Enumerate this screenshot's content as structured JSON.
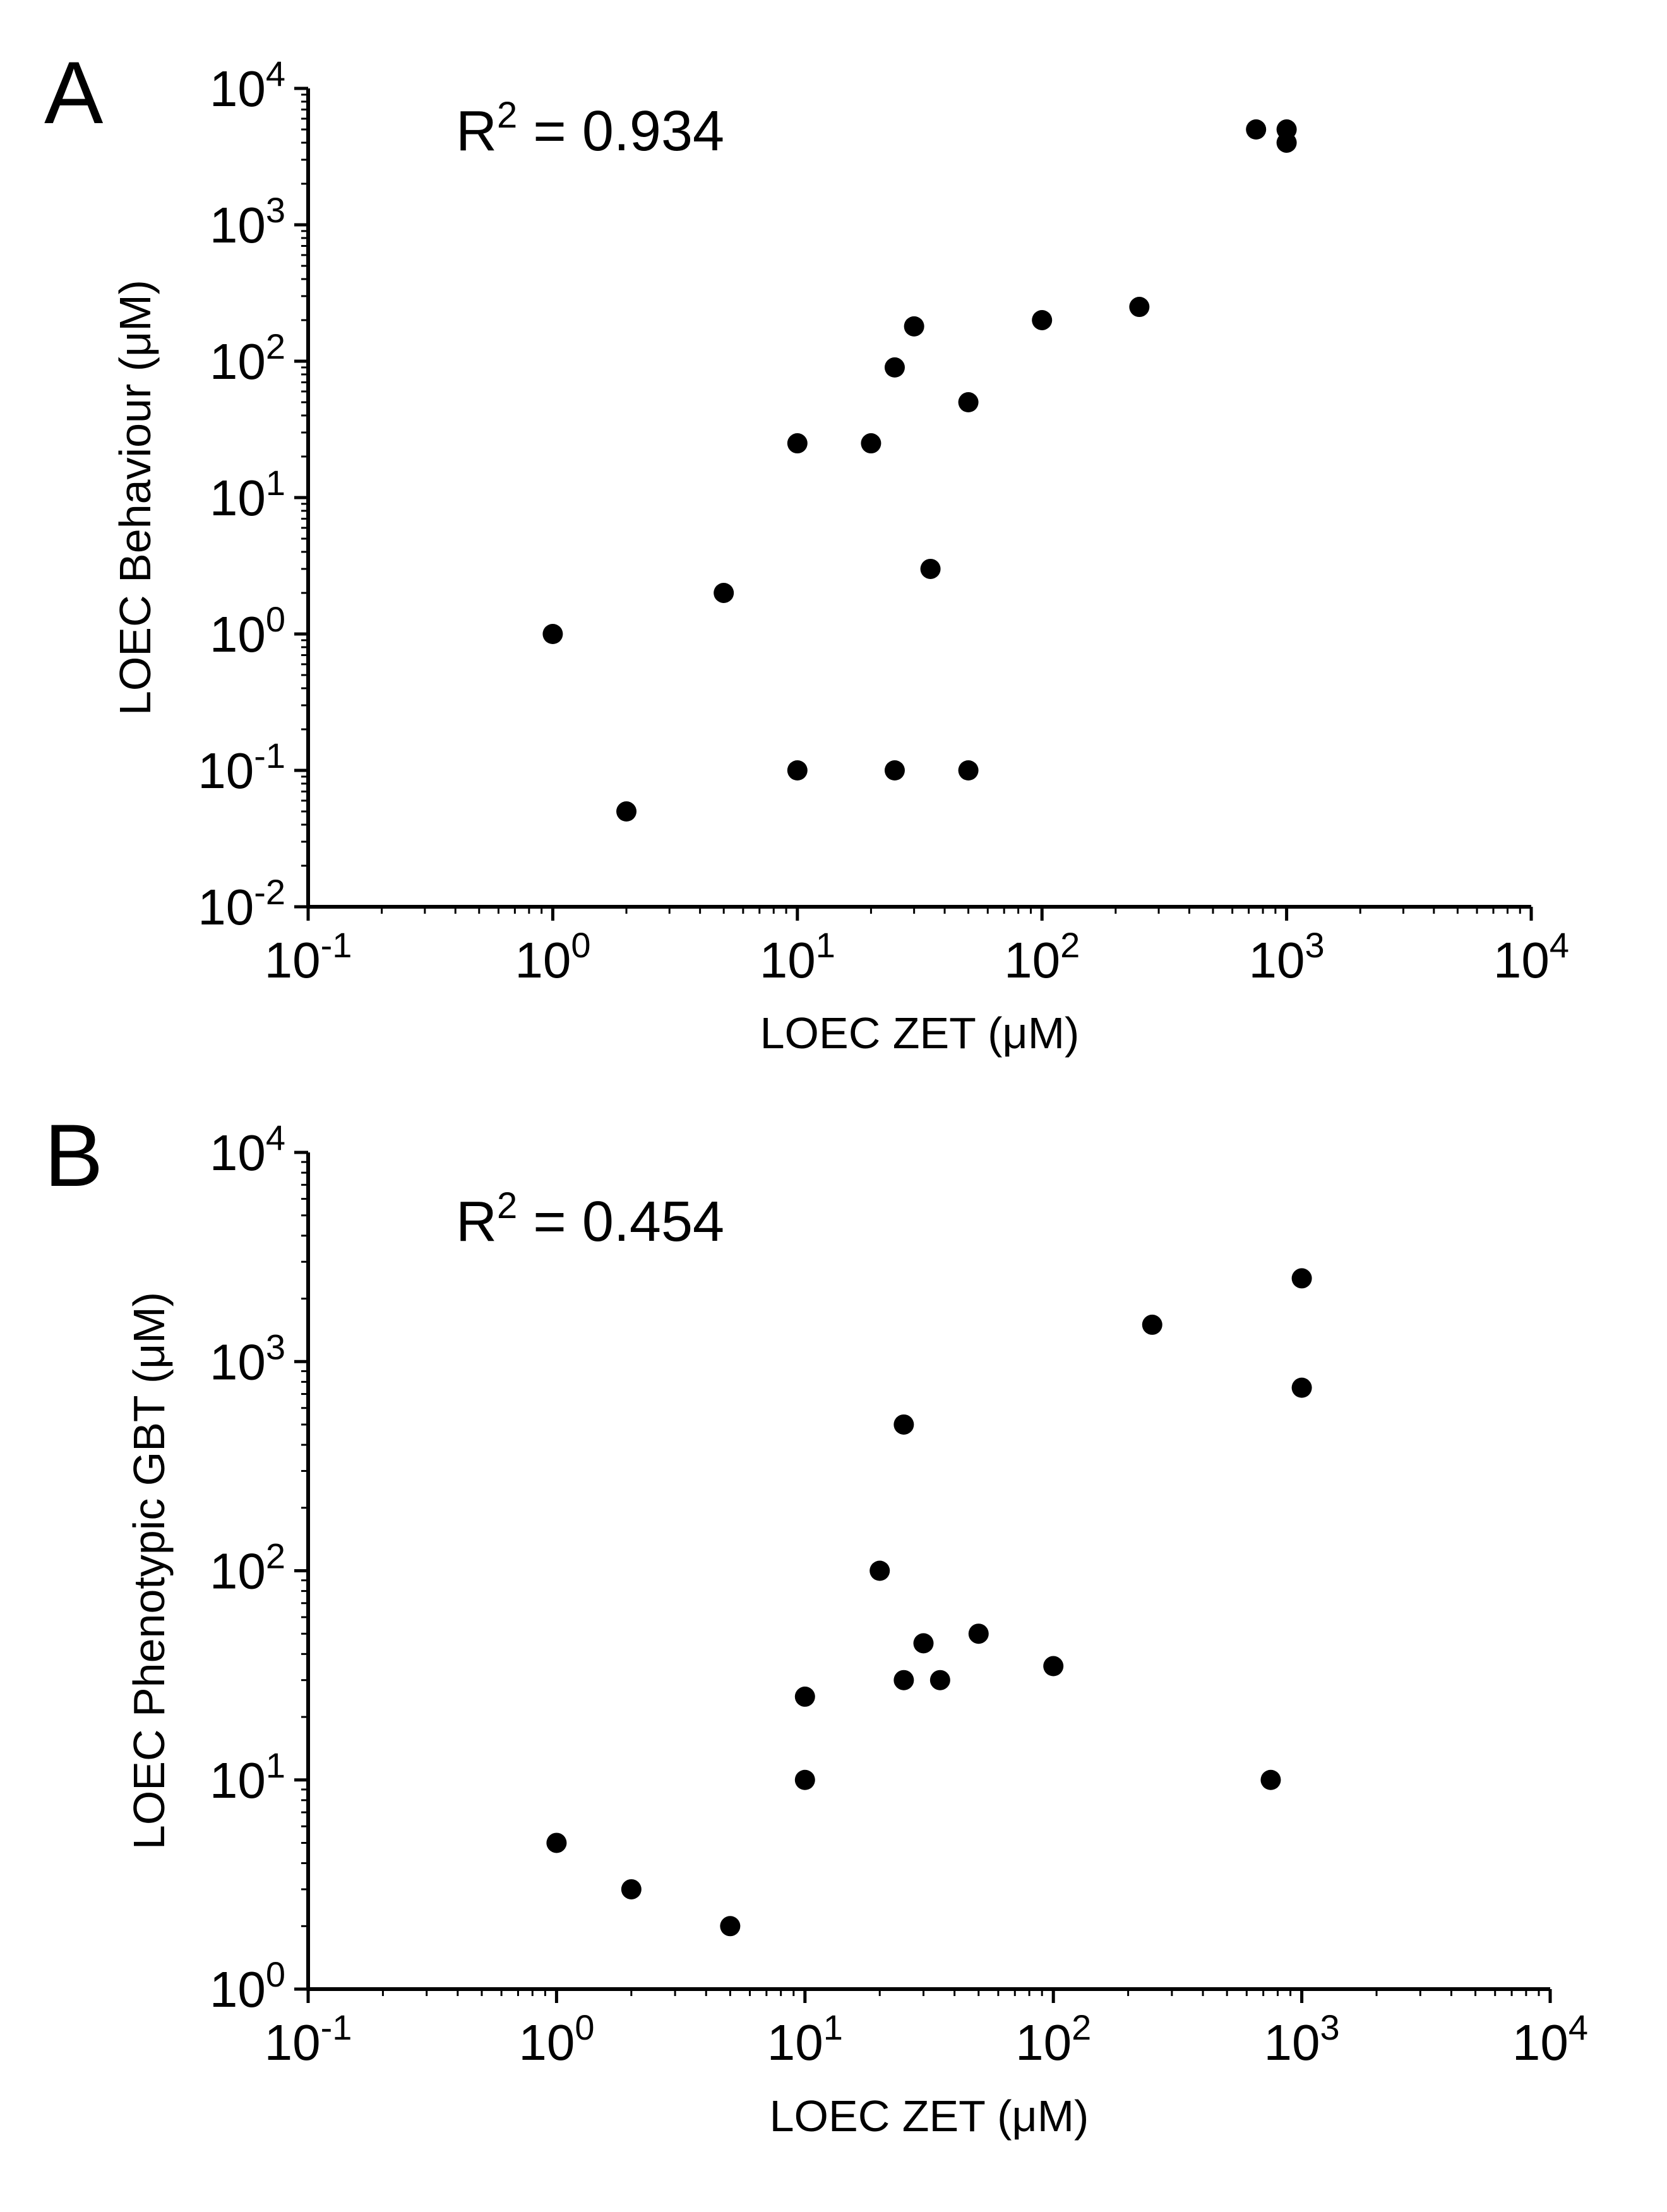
{
  "chart_data": [
    {
      "panel": "A",
      "type": "scatter",
      "annotation": "R² = 0.934",
      "r_squared_label": "R",
      "r_squared_sup": "2",
      "r_squared_value": "= 0.934",
      "xlabel": "LOEC ZET (μM)",
      "ylabel": "LOEC Behaviour (μM)",
      "xscale": "log",
      "yscale": "log",
      "xlim": [
        0.1,
        10000
      ],
      "ylim": [
        0.01,
        10000
      ],
      "x_ticks": [
        {
          "base": "10",
          "exp": "-1",
          "value": 0.1
        },
        {
          "base": "10",
          "exp": "0",
          "value": 1
        },
        {
          "base": "10",
          "exp": "1",
          "value": 10
        },
        {
          "base": "10",
          "exp": "2",
          "value": 100
        },
        {
          "base": "10",
          "exp": "3",
          "value": 1000
        },
        {
          "base": "10",
          "exp": "4",
          "value": 10000
        }
      ],
      "y_ticks": [
        {
          "base": "10",
          "exp": "-2",
          "value": 0.01
        },
        {
          "base": "10",
          "exp": "-1",
          "value": 0.1
        },
        {
          "base": "10",
          "exp": "0",
          "value": 1
        },
        {
          "base": "10",
          "exp": "1",
          "value": 10
        },
        {
          "base": "10",
          "exp": "2",
          "value": 100
        },
        {
          "base": "10",
          "exp": "3",
          "value": 1000
        },
        {
          "base": "10",
          "exp": "4",
          "value": 10000
        }
      ],
      "points": [
        {
          "x": 1,
          "y": 1
        },
        {
          "x": 2,
          "y": 0.05
        },
        {
          "x": 5,
          "y": 2
        },
        {
          "x": 10,
          "y": 25
        },
        {
          "x": 10,
          "y": 0.1
        },
        {
          "x": 20,
          "y": 25
        },
        {
          "x": 25,
          "y": 90
        },
        {
          "x": 25,
          "y": 0.1
        },
        {
          "x": 30,
          "y": 180
        },
        {
          "x": 35,
          "y": 3
        },
        {
          "x": 50,
          "y": 50
        },
        {
          "x": 50,
          "y": 0.1
        },
        {
          "x": 100,
          "y": 200
        },
        {
          "x": 250,
          "y": 250
        },
        {
          "x": 750,
          "y": 5000
        },
        {
          "x": 1000,
          "y": 5000
        },
        {
          "x": 1000,
          "y": 4000
        }
      ]
    },
    {
      "panel": "B",
      "type": "scatter",
      "annotation": "R² = 0.454",
      "r_squared_label": "R",
      "r_squared_sup": "2",
      "r_squared_value": "= 0.454",
      "xlabel": "LOEC ZET (μM)",
      "ylabel": "LOEC Phenotypic GBT (μM)",
      "xscale": "log",
      "yscale": "log",
      "xlim": [
        0.1,
        10000
      ],
      "ylim": [
        1,
        10000
      ],
      "x_ticks": [
        {
          "base": "10",
          "exp": "-1",
          "value": 0.1
        },
        {
          "base": "10",
          "exp": "0",
          "value": 1
        },
        {
          "base": "10",
          "exp": "1",
          "value": 10
        },
        {
          "base": "10",
          "exp": "2",
          "value": 100
        },
        {
          "base": "10",
          "exp": "3",
          "value": 1000
        },
        {
          "base": "10",
          "exp": "4",
          "value": 10000
        }
      ],
      "y_ticks": [
        {
          "base": "10",
          "exp": "0",
          "value": 1
        },
        {
          "base": "10",
          "exp": "1",
          "value": 10
        },
        {
          "base": "10",
          "exp": "2",
          "value": 100
        },
        {
          "base": "10",
          "exp": "3",
          "value": 1000
        },
        {
          "base": "10",
          "exp": "4",
          "value": 10000
        }
      ],
      "points": [
        {
          "x": 1,
          "y": 5
        },
        {
          "x": 2,
          "y": 3
        },
        {
          "x": 5,
          "y": 2
        },
        {
          "x": 10,
          "y": 25
        },
        {
          "x": 10,
          "y": 10
        },
        {
          "x": 20,
          "y": 100
        },
        {
          "x": 25,
          "y": 500
        },
        {
          "x": 25,
          "y": 30
        },
        {
          "x": 30,
          "y": 45
        },
        {
          "x": 35,
          "y": 30
        },
        {
          "x": 50,
          "y": 50
        },
        {
          "x": 100,
          "y": 35
        },
        {
          "x": 250,
          "y": 1500
        },
        {
          "x": 750,
          "y": 10
        },
        {
          "x": 1000,
          "y": 2500
        },
        {
          "x": 1000,
          "y": 750
        }
      ]
    }
  ]
}
